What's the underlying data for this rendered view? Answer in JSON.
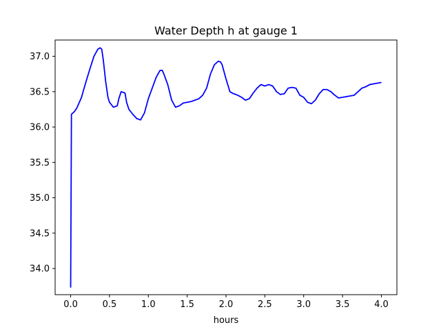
{
  "chart_data": {
    "type": "line",
    "title": "Water Depth h at gauge 1",
    "xlabel": "hours",
    "ylabel": "",
    "xlim": [
      -0.2,
      4.2
    ],
    "ylim": [
      33.63,
      37.23
    ],
    "grid": false,
    "x_ticks": [
      0.0,
      0.5,
      1.0,
      1.5,
      2.0,
      2.5,
      3.0,
      3.5,
      4.0
    ],
    "x_tick_labels": [
      "0.0",
      "0.5",
      "1.0",
      "1.5",
      "2.0",
      "2.5",
      "3.0",
      "3.5",
      "4.0"
    ],
    "y_ticks": [
      34.0,
      34.5,
      35.0,
      35.5,
      36.0,
      36.5,
      37.0
    ],
    "y_tick_labels": [
      "34.0",
      "34.5",
      "35.0",
      "35.5",
      "36.0",
      "36.5",
      "37.0"
    ],
    "series": [
      {
        "color": "#0000ff",
        "x": [
          0.0,
          0.01,
          0.02,
          0.05,
          0.08,
          0.1,
          0.14,
          0.16,
          0.2,
          0.25,
          0.3,
          0.35,
          0.38,
          0.4,
          0.42,
          0.45,
          0.48,
          0.5,
          0.55,
          0.6,
          0.62,
          0.65,
          0.7,
          0.72,
          0.75,
          0.8,
          0.85,
          0.9,
          0.95,
          1.0,
          1.05,
          1.1,
          1.15,
          1.18,
          1.2,
          1.25,
          1.3,
          1.35,
          1.4,
          1.45,
          1.5,
          1.55,
          1.6,
          1.65,
          1.7,
          1.75,
          1.8,
          1.85,
          1.9,
          1.93,
          1.95,
          2.0,
          2.05,
          2.08,
          2.1,
          2.15,
          2.2,
          2.25,
          2.3,
          2.35,
          2.4,
          2.45,
          2.5,
          2.55,
          2.6,
          2.65,
          2.7,
          2.75,
          2.8,
          2.85,
          2.9,
          2.95,
          3.0,
          3.05,
          3.1,
          3.15,
          3.2,
          3.25,
          3.3,
          3.35,
          3.4,
          3.45,
          3.5,
          3.55,
          3.6,
          3.65,
          3.7,
          3.75,
          3.8,
          3.85,
          3.9,
          3.95,
          4.0
        ],
        "y": [
          33.73,
          36.18,
          36.19,
          36.22,
          36.27,
          36.32,
          36.42,
          36.5,
          36.65,
          36.83,
          37.0,
          37.1,
          37.12,
          37.1,
          36.95,
          36.65,
          36.42,
          36.35,
          36.28,
          36.3,
          36.4,
          36.5,
          36.48,
          36.35,
          36.25,
          36.18,
          36.12,
          36.1,
          36.2,
          36.4,
          36.55,
          36.7,
          36.8,
          36.8,
          36.75,
          36.6,
          36.38,
          36.28,
          36.3,
          36.34,
          36.35,
          36.36,
          36.38,
          36.4,
          36.45,
          36.55,
          36.75,
          36.88,
          36.93,
          36.92,
          36.88,
          36.68,
          36.5,
          36.48,
          36.47,
          36.45,
          36.42,
          36.38,
          36.4,
          36.48,
          36.55,
          36.6,
          36.58,
          36.6,
          36.58,
          36.5,
          36.46,
          36.47,
          36.55,
          36.56,
          36.55,
          36.45,
          36.42,
          36.35,
          36.33,
          36.38,
          36.47,
          36.53,
          36.53,
          36.5,
          36.45,
          36.41,
          36.42,
          36.43,
          36.44,
          36.45,
          36.5,
          36.55,
          36.57,
          36.6,
          36.61,
          36.62,
          36.63
        ]
      }
    ]
  }
}
